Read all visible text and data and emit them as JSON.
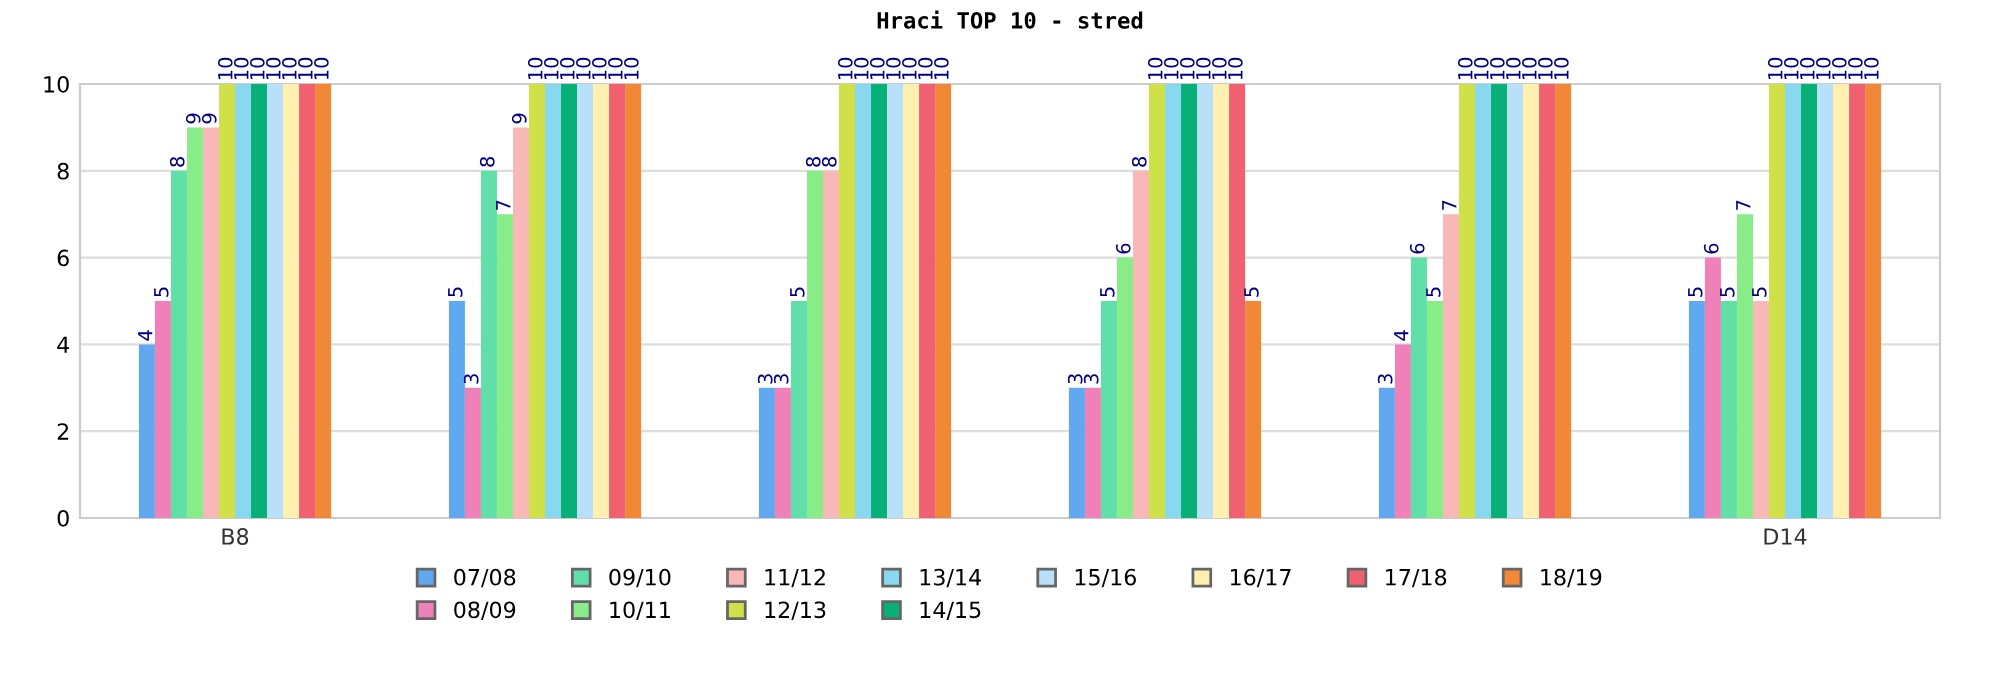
{
  "chart_data": {
    "type": "bar",
    "title": "Hraci TOP 10 - stred",
    "categories": [
      "B8",
      null,
      null,
      null,
      null,
      "D14"
    ],
    "series": [
      {
        "name": "07/08",
        "color": "#60a8f0",
        "values": [
          4,
          5,
          3,
          3,
          3,
          5
        ]
      },
      {
        "name": "08/09",
        "color": "#f080b8",
        "values": [
          5,
          3,
          3,
          3,
          4,
          6
        ]
      },
      {
        "name": "09/10",
        "color": "#60e0a8",
        "values": [
          8,
          8,
          5,
          5,
          6,
          5
        ]
      },
      {
        "name": "10/11",
        "color": "#88ec88",
        "values": [
          9,
          7,
          8,
          6,
          5,
          7
        ]
      },
      {
        "name": "11/12",
        "color": "#f8b8b8",
        "values": [
          9,
          9,
          8,
          8,
          7,
          5
        ]
      },
      {
        "name": "12/13",
        "color": "#d0e048",
        "values": [
          10,
          10,
          10,
          10,
          10,
          10
        ]
      },
      {
        "name": "13/14",
        "color": "#88d8f0",
        "values": [
          10,
          10,
          10,
          10,
          10,
          10
        ]
      },
      {
        "name": "14/15",
        "color": "#08b078",
        "values": [
          10,
          10,
          10,
          10,
          10,
          10
        ]
      },
      {
        "name": "15/16",
        "color": "#b8e0f8",
        "values": [
          10,
          10,
          10,
          10,
          10,
          10
        ]
      },
      {
        "name": "16/17",
        "color": "#fff0b0",
        "values": [
          10,
          10,
          10,
          10,
          10,
          10
        ]
      },
      {
        "name": "17/18",
        "color": "#f06070",
        "values": [
          10,
          10,
          10,
          10,
          10,
          10
        ]
      },
      {
        "name": "18/19",
        "color": "#f08838",
        "values": [
          10,
          10,
          10,
          5,
          10,
          10
        ]
      }
    ],
    "ylim": [
      0,
      10
    ],
    "yticks": [
      0,
      2,
      4,
      6,
      8,
      10
    ],
    "grid": "y",
    "legend": "bottom",
    "data_labels": true
  }
}
